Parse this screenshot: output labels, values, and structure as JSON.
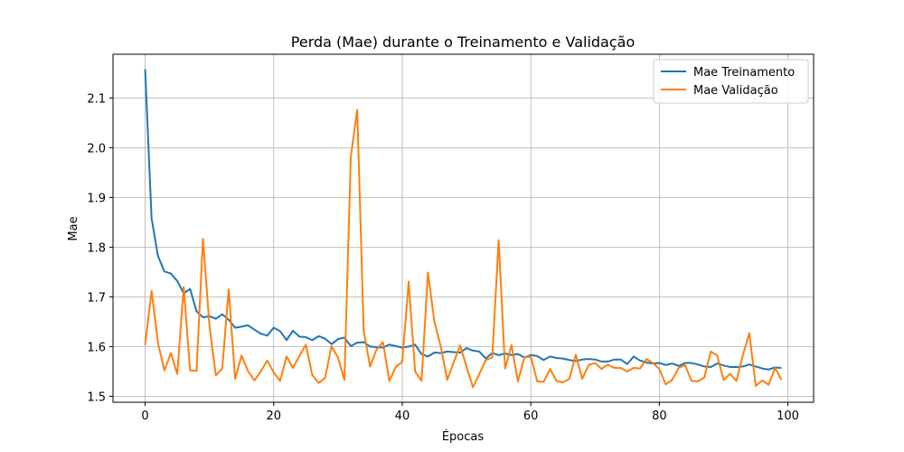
{
  "chart_data": {
    "type": "line",
    "title": "Perda (Mae) durante o Treinamento e Validação",
    "xlabel": "Épocas",
    "ylabel": "Mae",
    "xlim": [
      -5,
      104
    ],
    "ylim": [
      1.488,
      2.188
    ],
    "xticks": [
      0,
      20,
      40,
      60,
      80,
      100
    ],
    "yticks": [
      1.5,
      1.6,
      1.7,
      1.8,
      1.9,
      2.0,
      2.1
    ],
    "ytick_labels": [
      "1.5",
      "1.6",
      "1.7",
      "1.8",
      "1.9",
      "2.0",
      "2.1"
    ],
    "grid": true,
    "legend_position": "top-right",
    "x": [
      0,
      1,
      2,
      3,
      4,
      5,
      6,
      7,
      8,
      9,
      10,
      11,
      12,
      13,
      14,
      15,
      16,
      17,
      18,
      19,
      20,
      21,
      22,
      23,
      24,
      25,
      26,
      27,
      28,
      29,
      30,
      31,
      32,
      33,
      34,
      35,
      36,
      37,
      38,
      39,
      40,
      41,
      42,
      43,
      44,
      45,
      46,
      47,
      48,
      49,
      50,
      51,
      52,
      53,
      54,
      55,
      56,
      57,
      58,
      59,
      60,
      61,
      62,
      63,
      64,
      65,
      66,
      67,
      68,
      69,
      70,
      71,
      72,
      73,
      74,
      75,
      76,
      77,
      78,
      79,
      80,
      81,
      82,
      83,
      84,
      85,
      86,
      87,
      88,
      89,
      90,
      91,
      92,
      93,
      94,
      95,
      96,
      97,
      98,
      99
    ],
    "series": [
      {
        "name": "Mae Treinamento",
        "color": "#1f77b4",
        "values": [
          2.158,
          1.858,
          1.782,
          1.751,
          1.747,
          1.732,
          1.707,
          1.716,
          1.671,
          1.659,
          1.661,
          1.656,
          1.665,
          1.654,
          1.638,
          1.64,
          1.643,
          1.634,
          1.626,
          1.622,
          1.638,
          1.631,
          1.613,
          1.632,
          1.62,
          1.619,
          1.613,
          1.621,
          1.616,
          1.605,
          1.615,
          1.618,
          1.601,
          1.608,
          1.609,
          1.6,
          1.599,
          1.598,
          1.604,
          1.601,
          1.598,
          1.6,
          1.604,
          1.585,
          1.58,
          1.588,
          1.587,
          1.59,
          1.589,
          1.588,
          1.597,
          1.592,
          1.59,
          1.576,
          1.587,
          1.583,
          1.586,
          1.583,
          1.585,
          1.578,
          1.583,
          1.581,
          1.573,
          1.58,
          1.577,
          1.576,
          1.573,
          1.571,
          1.574,
          1.575,
          1.574,
          1.57,
          1.57,
          1.574,
          1.574,
          1.565,
          1.58,
          1.572,
          1.568,
          1.566,
          1.567,
          1.563,
          1.566,
          1.561,
          1.567,
          1.567,
          1.564,
          1.56,
          1.559,
          1.566,
          1.562,
          1.559,
          1.559,
          1.56,
          1.564,
          1.56,
          1.556,
          1.554,
          1.558,
          1.557
        ]
      },
      {
        "name": "Mae Validação",
        "color": "#ff7f0e",
        "values": [
          1.603,
          1.712,
          1.607,
          1.552,
          1.587,
          1.545,
          1.72,
          1.552,
          1.551,
          1.817,
          1.643,
          1.542,
          1.556,
          1.715,
          1.535,
          1.582,
          1.551,
          1.532,
          1.55,
          1.572,
          1.548,
          1.531,
          1.58,
          1.557,
          1.581,
          1.604,
          1.543,
          1.527,
          1.537,
          1.601,
          1.578,
          1.533,
          1.982,
          2.076,
          1.632,
          1.56,
          1.594,
          1.609,
          1.531,
          1.559,
          1.569,
          1.731,
          1.55,
          1.531,
          1.749,
          1.65,
          1.6,
          1.533,
          1.568,
          1.602,
          1.56,
          1.518,
          1.545,
          1.573,
          1.578,
          1.814,
          1.556,
          1.603,
          1.53,
          1.578,
          1.58,
          1.53,
          1.529,
          1.555,
          1.531,
          1.528,
          1.535,
          1.584,
          1.535,
          1.563,
          1.567,
          1.555,
          1.564,
          1.557,
          1.557,
          1.55,
          1.557,
          1.556,
          1.575,
          1.567,
          1.555,
          1.524,
          1.533,
          1.557,
          1.563,
          1.531,
          1.53,
          1.538,
          1.59,
          1.582,
          1.533,
          1.545,
          1.531,
          1.583,
          1.627,
          1.521,
          1.532,
          1.523,
          1.557,
          1.533
        ]
      }
    ]
  }
}
